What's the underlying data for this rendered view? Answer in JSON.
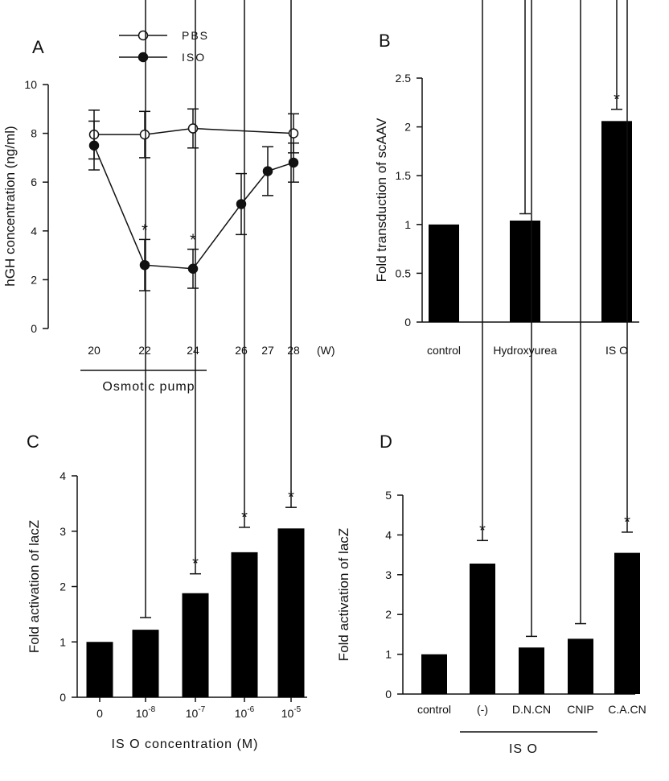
{
  "panels": [
    {
      "id": "A",
      "letter": "A",
      "chart_data": {
        "type": "line",
        "x": [
          20,
          22,
          24,
          26,
          27,
          28
        ],
        "x_tick_labels": [
          "20",
          "22",
          "24",
          "26",
          "27",
          "28"
        ],
        "x_unit": "(W)",
        "ylabel": "hGH concentration (ng/ml)",
        "ylim": [
          0,
          10
        ],
        "yticks": [
          "0",
          "2",
          "4",
          "6",
          "8",
          "10"
        ],
        "bracket_label": "Osmotic pump",
        "series": [
          {
            "name": "PBS",
            "marker": "open",
            "x": [
              20,
              22,
              24,
              28
            ],
            "y": [
              7.95,
              7.95,
              8.2,
              8.0
            ],
            "err": [
              1.0,
              0.95,
              0.8,
              0.8
            ],
            "stars": [
              false,
              false,
              false,
              false
            ]
          },
          {
            "name": "ISO",
            "marker": "filled",
            "x": [
              20,
              22,
              24,
              26,
              27,
              28
            ],
            "y": [
              7.5,
              2.6,
              2.45,
              5.1,
              6.45,
              6.8
            ],
            "err": [
              1.0,
              1.05,
              0.8,
              1.25,
              1.0,
              0.8
            ],
            "stars": [
              false,
              true,
              true,
              false,
              false,
              false
            ]
          }
        ],
        "star_symbol": "*"
      }
    },
    {
      "id": "B",
      "letter": "B",
      "chart_data": {
        "type": "bar",
        "categories": [
          "control",
          "Hydroxyurea",
          "IS O"
        ],
        "values": [
          1.0,
          1.04,
          2.06
        ],
        "errors": [
          0,
          0.07,
          0.12
        ],
        "stars": [
          false,
          false,
          true
        ],
        "ylabel": "Fold transduction of scAAV",
        "ylim": [
          0,
          2.5
        ],
        "yticks": [
          "0",
          "0.5",
          "1",
          "1.5",
          "2",
          "2.5"
        ],
        "star_symbol": "*"
      }
    },
    {
      "id": "C",
      "letter": "C",
      "chart_data": {
        "type": "bar",
        "categories": [
          {
            "base": "0",
            "exp": ""
          },
          {
            "base": "10",
            "exp": "-8"
          },
          {
            "base": "10",
            "exp": "-7"
          },
          {
            "base": "10",
            "exp": "-6"
          },
          {
            "base": "10",
            "exp": "-5"
          }
        ],
        "values": [
          1.0,
          1.22,
          1.88,
          2.62,
          3.05
        ],
        "errors": [
          0,
          0.22,
          0.35,
          0.45,
          0.38
        ],
        "stars": [
          false,
          false,
          true,
          true,
          true
        ],
        "xlabel": "IS O concentration (M)",
        "ylabel": "Fold activation of lacZ",
        "ylim": [
          0,
          4
        ],
        "yticks": [
          "0",
          "1",
          "2",
          "3",
          "4"
        ],
        "star_symbol": "*"
      }
    },
    {
      "id": "D",
      "letter": "D",
      "chart_data": {
        "type": "bar",
        "categories": [
          "control",
          "(-)",
          "D.N.CN",
          "CNIP",
          "C.A.CN"
        ],
        "values": [
          1.0,
          3.28,
          1.17,
          1.39,
          3.55
        ],
        "errors": [
          0,
          0.58,
          0.28,
          0.38,
          0.52
        ],
        "stars": [
          false,
          true,
          false,
          false,
          true
        ],
        "bracket_label": "IS O",
        "ylabel": "Fold activation of lacZ",
        "ylim": [
          0,
          5
        ],
        "yticks": [
          "0",
          "1",
          "2",
          "3",
          "4",
          "5"
        ],
        "star_symbol": "*"
      }
    }
  ],
  "colors": {
    "ink": "#111111",
    "bar": "#000000",
    "open_marker": "#ffffff"
  }
}
